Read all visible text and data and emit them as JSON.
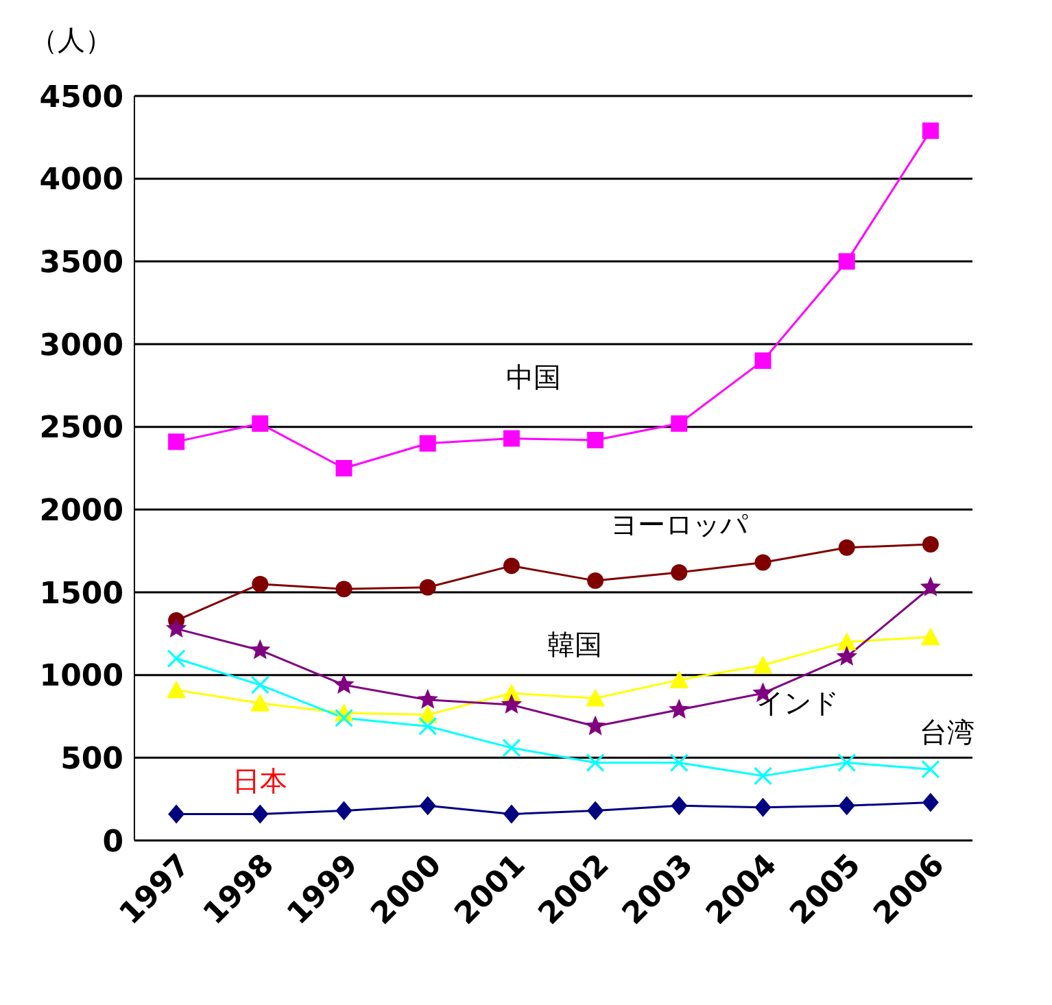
{
  "chart_data": {
    "type": "line",
    "ylabel": "（人）",
    "categories": [
      "1997",
      "1998",
      "1999",
      "2000",
      "2001",
      "2002",
      "2003",
      "2004",
      "2005",
      "2006"
    ],
    "ylim": [
      0,
      4500
    ],
    "yticks": [
      0,
      500,
      1000,
      1500,
      2000,
      2500,
      3000,
      3500,
      4000,
      4500
    ],
    "grid": "y",
    "legend": false,
    "series": [
      {
        "name": "中国",
        "color": "#ff00ff",
        "marker": "square",
        "values": [
          2410,
          2520,
          2250,
          2400,
          2430,
          2420,
          2520,
          2900,
          3500,
          4290
        ]
      },
      {
        "name": "ヨーロッパ",
        "color": "#800000",
        "marker": "circle",
        "values": [
          1330,
          1550,
          1520,
          1530,
          1660,
          1570,
          1620,
          1680,
          1770,
          1790
        ]
      },
      {
        "name": "韓国",
        "color": "#ffff00",
        "marker": "triangle",
        "values": [
          910,
          830,
          770,
          760,
          890,
          860,
          970,
          1060,
          1200,
          1230
        ]
      },
      {
        "name": "インド",
        "color": "#800080",
        "marker": "star",
        "values": [
          1280,
          1150,
          940,
          850,
          820,
          690,
          790,
          890,
          1110,
          1530
        ]
      },
      {
        "name": "台湾",
        "color": "#00ffff",
        "marker": "cross",
        "values": [
          1100,
          940,
          740,
          690,
          560,
          470,
          470,
          390,
          470,
          430
        ]
      },
      {
        "name": "日本",
        "color": "#000080",
        "marker": "diamond",
        "values": [
          160,
          160,
          180,
          210,
          160,
          180,
          210,
          200,
          210,
          230
        ]
      }
    ]
  }
}
